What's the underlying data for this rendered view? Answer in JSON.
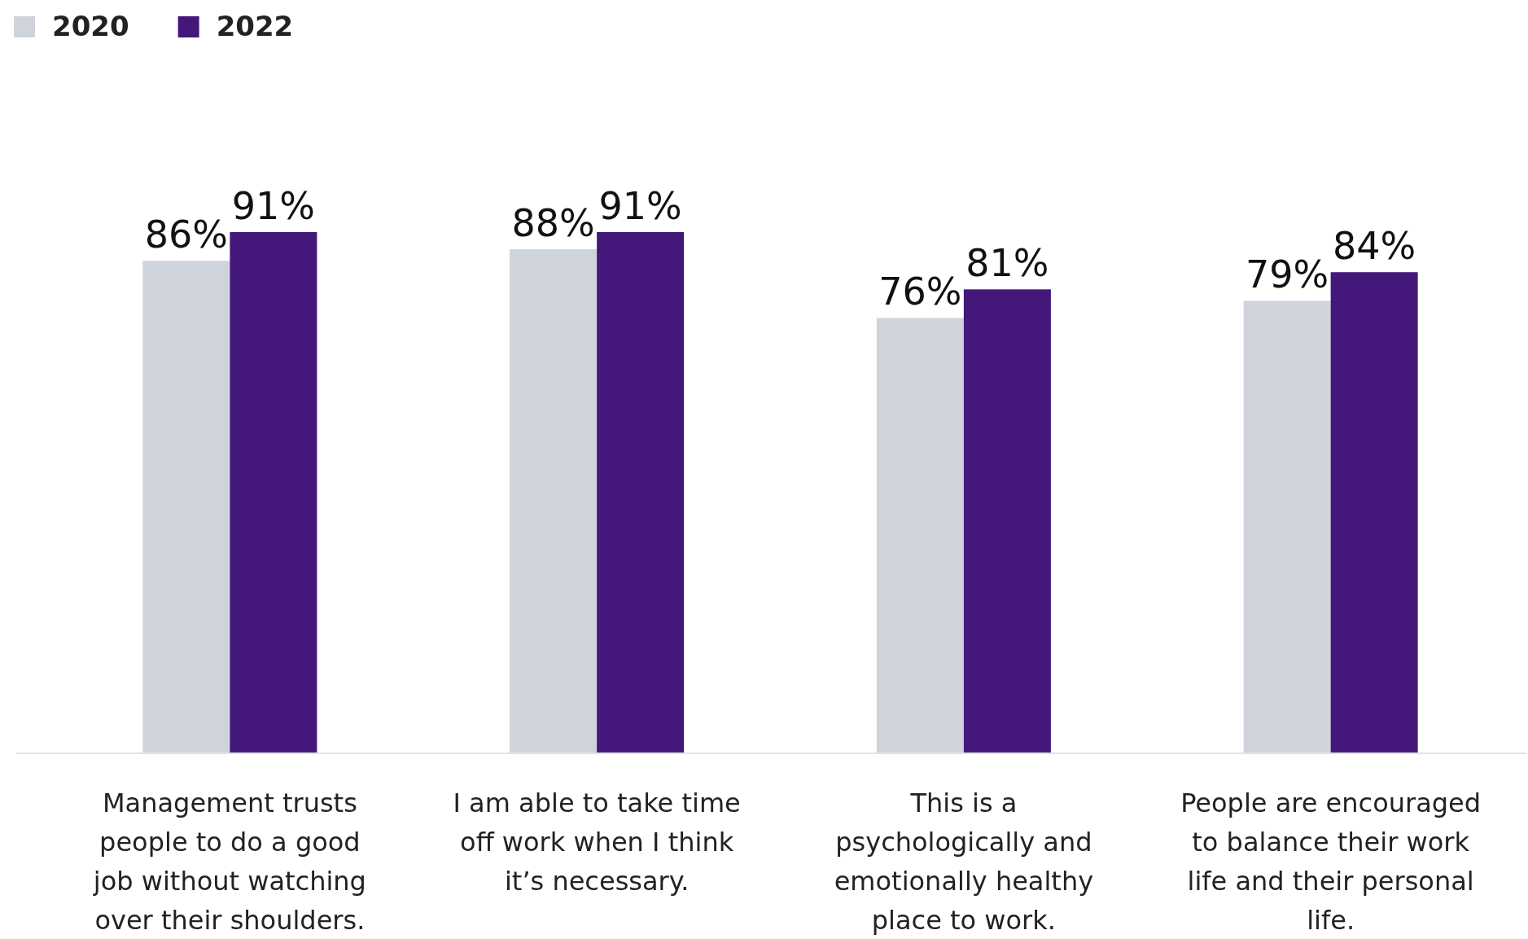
{
  "chart_data": {
    "type": "bar",
    "categories": [
      "Management trusts people to do a good job without watching over their shoulders.",
      "I am able to take time off work when I think it’s necessary.",
      "This is a psychologically and emotionally healthy place to work.",
      "People are encouraged to balance their work life and their personal life."
    ],
    "series": [
      {
        "name": "2020",
        "color": "#cfd3dc",
        "values": [
          86,
          88,
          76,
          79
        ],
        "value_labels": [
          "86%",
          "88%",
          "76%",
          "79%"
        ]
      },
      {
        "name": "2022",
        "color": "#43187a",
        "values": [
          91,
          91,
          81,
          84
        ],
        "value_labels": [
          "91%",
          "91%",
          "81%",
          "84%"
        ]
      }
    ],
    "tick_labels": "x",
    "legend": "top left"
  }
}
